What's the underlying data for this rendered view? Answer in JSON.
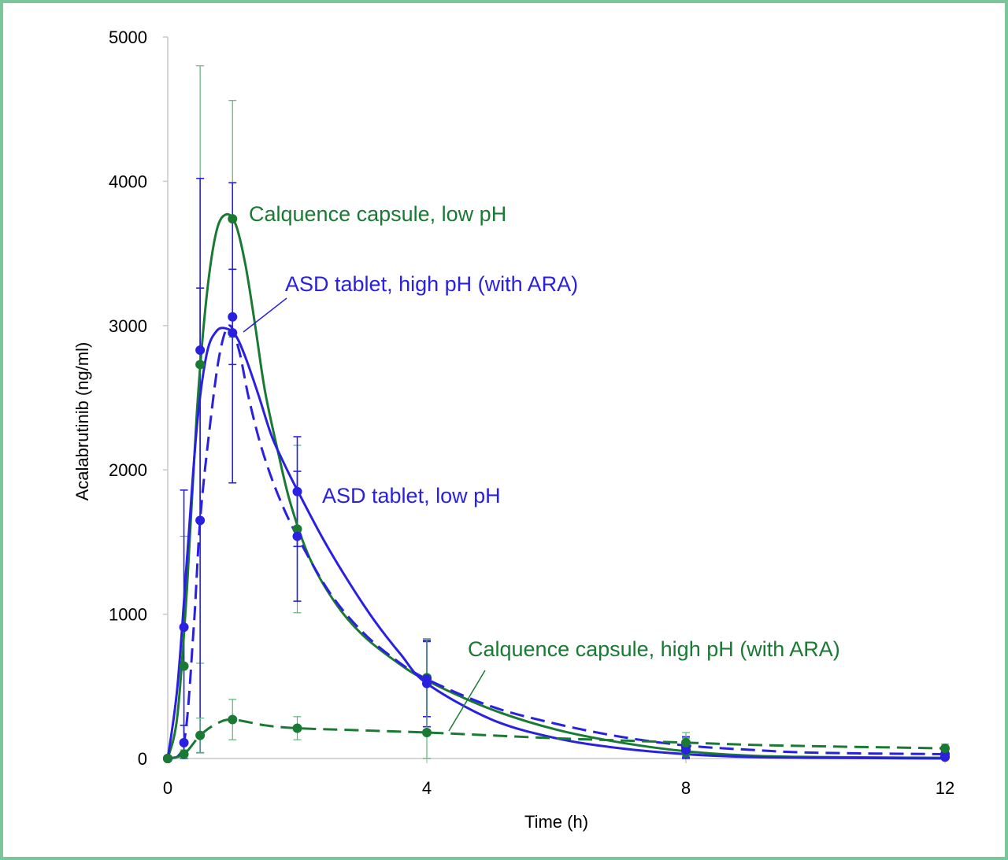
{
  "chart_data": {
    "type": "line",
    "title": "",
    "xlabel": "Time (h)",
    "ylabel": "Acalabrutinib (ng/ml)",
    "xlim": [
      0,
      12
    ],
    "ylim": [
      0,
      5000
    ],
    "x_ticks": [
      0,
      4,
      8,
      12
    ],
    "y_ticks": [
      0,
      1000,
      2000,
      3000,
      4000,
      5000
    ],
    "grid": false,
    "legend": "none (series labelled directly on the plot)",
    "series": [
      {
        "name": "Calquence capsule, low pH",
        "color": "#1a7a34",
        "dash": false,
        "x": [
          0,
          0.25,
          0.5,
          1,
          2,
          4,
          8,
          12
        ],
        "y": [
          0,
          640,
          2730,
          3740,
          1590,
          560,
          40,
          10
        ],
        "err": [
          0,
          900,
          2070,
          820,
          580,
          270,
          100,
          20
        ],
        "fit": [
          [
            0,
            0
          ],
          [
            0.15,
            300
          ],
          [
            0.3,
            1200
          ],
          [
            0.45,
            2400
          ],
          [
            0.6,
            3200
          ],
          [
            0.75,
            3650
          ],
          [
            0.9,
            3770
          ],
          [
            1.05,
            3700
          ],
          [
            1.2,
            3420
          ],
          [
            1.35,
            3000
          ],
          [
            1.5,
            2550
          ],
          [
            1.7,
            2130
          ],
          [
            1.9,
            1760
          ],
          [
            2.2,
            1380
          ],
          [
            2.6,
            1070
          ],
          [
            3,
            860
          ],
          [
            3.5,
            680
          ],
          [
            4,
            540
          ],
          [
            5,
            340
          ],
          [
            6,
            200
          ],
          [
            7,
            110
          ],
          [
            8,
            50
          ],
          [
            9,
            20
          ],
          [
            10,
            10
          ],
          [
            12,
            5
          ]
        ]
      },
      {
        "name": "ASD tablet, high pH (with ARA)",
        "color": "#2a20e0",
        "dash": true,
        "x": [
          0,
          0.25,
          0.5,
          1,
          2,
          4,
          8,
          12
        ],
        "y": [
          0,
          110,
          1650,
          3060,
          1540,
          550,
          80,
          30
        ],
        "err": [
          0,
          120,
          1610,
          330,
          450,
          260,
          70,
          20
        ],
        "fit": [
          [
            0,
            0
          ],
          [
            0.25,
            110
          ],
          [
            0.4,
            900
          ],
          [
            0.5,
            1650
          ],
          [
            0.65,
            2300
          ],
          [
            0.8,
            2800
          ],
          [
            0.95,
            3000
          ],
          [
            1.1,
            2830
          ],
          [
            1.25,
            2500
          ],
          [
            1.45,
            2150
          ],
          [
            1.7,
            1830
          ],
          [
            2,
            1540
          ],
          [
            2.5,
            1150
          ],
          [
            3,
            880
          ],
          [
            3.5,
            690
          ],
          [
            4,
            550
          ],
          [
            5,
            360
          ],
          [
            6,
            240
          ],
          [
            7,
            150
          ],
          [
            8,
            90
          ],
          [
            9,
            60
          ],
          [
            10,
            40
          ],
          [
            12,
            30
          ]
        ]
      },
      {
        "name": "ASD tablet, low pH",
        "color": "#2a20e0",
        "dash": false,
        "x": [
          0,
          0.25,
          0.5,
          1,
          2,
          4,
          8,
          12
        ],
        "y": [
          0,
          910,
          2830,
          2950,
          1850,
          520,
          60,
          10
        ],
        "err": [
          0,
          950,
          1190,
          1040,
          380,
          300,
          90,
          20
        ],
        "fit": [
          [
            0,
            0
          ],
          [
            0.15,
            500
          ],
          [
            0.3,
            1400
          ],
          [
            0.45,
            2300
          ],
          [
            0.6,
            2800
          ],
          [
            0.75,
            2960
          ],
          [
            0.9,
            2980
          ],
          [
            1.05,
            2930
          ],
          [
            1.2,
            2780
          ],
          [
            1.4,
            2520
          ],
          [
            1.6,
            2240
          ],
          [
            1.8,
            2040
          ],
          [
            2,
            1860
          ],
          [
            2.4,
            1520
          ],
          [
            2.8,
            1220
          ],
          [
            3.2,
            950
          ],
          [
            3.6,
            720
          ],
          [
            4,
            520
          ],
          [
            5,
            270
          ],
          [
            6,
            140
          ],
          [
            7,
            70
          ],
          [
            8,
            30
          ],
          [
            9,
            10
          ],
          [
            10,
            5
          ],
          [
            12,
            0
          ]
        ]
      },
      {
        "name": "Calquence capsule, high pH (with ARA)",
        "color": "#1a7a34",
        "dash": true,
        "x": [
          0,
          0.25,
          0.5,
          1,
          2,
          4,
          8,
          12
        ],
        "y": [
          0,
          30,
          160,
          270,
          210,
          180,
          110,
          70
        ],
        "err": [
          0,
          30,
          120,
          140,
          80,
          650,
          70,
          30
        ],
        "fit": [
          [
            0,
            0
          ],
          [
            0.25,
            30
          ],
          [
            0.5,
            160
          ],
          [
            0.75,
            240
          ],
          [
            1,
            270
          ],
          [
            1.5,
            230
          ],
          [
            2,
            210
          ],
          [
            3,
            195
          ],
          [
            4,
            180
          ],
          [
            5,
            160
          ],
          [
            6,
            140
          ],
          [
            7,
            125
          ],
          [
            8,
            110
          ],
          [
            9,
            95
          ],
          [
            10,
            85
          ],
          [
            11,
            78
          ],
          [
            12,
            70
          ]
        ]
      }
    ],
    "annotations": [
      "Calquence capsule, low pH",
      "ASD tablet, high pH (with ARA)",
      "ASD tablet, low pH",
      "Calquence capsule, high pH (with ARA)"
    ]
  }
}
